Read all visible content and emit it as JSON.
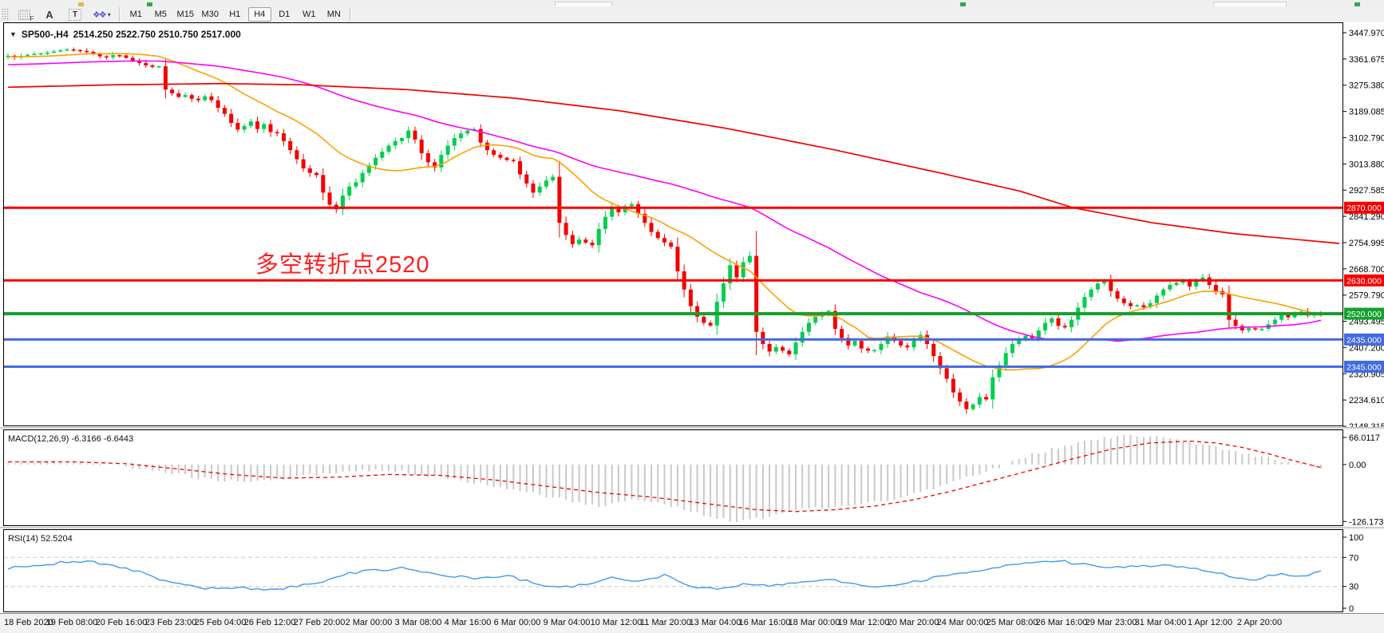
{
  "toolbar": {
    "tools": [
      {
        "name": "indicator-frame",
        "glyph": "F"
      },
      {
        "name": "label-text",
        "glyph": "A"
      },
      {
        "name": "text-box",
        "glyph": "T"
      },
      {
        "name": "shapes",
        "glyph": "❖❖",
        "caret": "▾"
      }
    ],
    "timeframes": [
      {
        "label": "M1",
        "active": false
      },
      {
        "label": "M5",
        "active": false
      },
      {
        "label": "M15",
        "active": false
      },
      {
        "label": "M30",
        "active": false
      },
      {
        "label": "H1",
        "active": false
      },
      {
        "label": "H4",
        "active": true
      },
      {
        "label": "D1",
        "active": false
      },
      {
        "label": "W1",
        "active": false
      },
      {
        "label": "MN",
        "active": false
      }
    ]
  },
  "chart": {
    "title": {
      "dropdown_glyph": "▼",
      "symbol_period": "SP500-,H4",
      "ohlc": "2514.250 2522.750 2510.750 2517.000"
    },
    "annotation": {
      "text": "多空转折点2520",
      "color": "#ff2020"
    },
    "colors": {
      "up": "#00cf4e",
      "down": "#f40000",
      "ma_fast": "#ffa000",
      "ma_mid": "#ff00ff",
      "ma_slow": "#f40000"
    },
    "y_axis_labels": [
      "3447.970",
      "3361.675",
      "3275.380",
      "3189.085",
      "3102.790",
      "3013.880",
      "2927.585",
      "2841.290",
      "2754.995",
      "2668.700",
      "2579.790",
      "2493.495",
      "2407.200",
      "2320.905",
      "2234.610",
      "2148.315"
    ],
    "price_top_label": 3447.97,
    "price_bottom_label": 2148.315,
    "levels": [
      {
        "label": "2870.000",
        "price": 2870,
        "color": "#f40000",
        "width": 3
      },
      {
        "label": "2630.000",
        "price": 2630,
        "color": "#f40000",
        "width": 3
      },
      {
        "label": "2520.000",
        "price": 2520,
        "color": "#17a02e",
        "width": 4
      },
      {
        "label": "2435.000",
        "price": 2435,
        "color": "#4169e1",
        "width": 3
      },
      {
        "label": "2345.000",
        "price": 2345,
        "color": "#4169e1",
        "width": 3
      }
    ],
    "first_open": 3368,
    "closes": [
      3372,
      3368,
      3371,
      3375,
      3378,
      3380,
      3382,
      3386,
      3390,
      3393,
      3391,
      3388,
      3385,
      3378,
      3370,
      3367,
      3374,
      3373,
      3365,
      3355,
      3348,
      3340,
      3335,
      3337,
      3260,
      3248,
      3236,
      3242,
      3230,
      3225,
      3238,
      3225,
      3200,
      3180,
      3150,
      3128,
      3140,
      3155,
      3130,
      3146,
      3120,
      3116,
      3090,
      3060,
      3030,
      3000,
      2985,
      2978,
      2920,
      2880,
      2865,
      2910,
      2940,
      2954,
      2985,
      3010,
      3035,
      3055,
      3075,
      3090,
      3100,
      3125,
      3095,
      3050,
      3020,
      3003,
      3045,
      3075,
      3100,
      3115,
      3125,
      3130,
      3085,
      3060,
      3045,
      3035,
      3028,
      3024,
      2980,
      2950,
      2920,
      2940,
      2960,
      2972,
      2820,
      2780,
      2750,
      2765,
      2755,
      2746,
      2800,
      2840,
      2870,
      2855,
      2875,
      2882,
      2850,
      2820,
      2790,
      2770,
      2755,
      2741,
      2660,
      2600,
      2545,
      2510,
      2490,
      2481,
      2560,
      2620,
      2680,
      2640,
      2690,
      2711,
      2460,
      2420,
      2395,
      2410,
      2398,
      2386,
      2425,
      2460,
      2490,
      2510,
      2520,
      2529,
      2470,
      2440,
      2415,
      2430,
      2405,
      2398,
      2400,
      2420,
      2445,
      2430,
      2415,
      2409,
      2435,
      2450,
      2420,
      2380,
      2340,
      2305,
      2260,
      2230,
      2205,
      2220,
      2245,
      2237,
      2310,
      2350,
      2390,
      2420,
      2435,
      2447,
      2440,
      2465,
      2490,
      2505,
      2480,
      2475,
      2500,
      2540,
      2575,
      2600,
      2620,
      2630,
      2595,
      2570,
      2555,
      2545,
      2548,
      2541,
      2555,
      2580,
      2600,
      2615,
      2622,
      2627,
      2610,
      2630,
      2640,
      2615,
      2595,
      2584,
      2500,
      2480,
      2465,
      2472,
      2468,
      2470,
      2485,
      2500,
      2515,
      2508,
      2520,
      2527,
      2514,
      2523,
      2517
    ],
    "sma_fast": {
      "period": 18,
      "pad": 3368
    },
    "sma_mid": {
      "period": 56,
      "pad": 3342
    },
    "ma_slow_anchors": [
      [
        0,
        3268
      ],
      [
        0.08,
        3276
      ],
      [
        0.16,
        3280
      ],
      [
        0.22,
        3276
      ],
      [
        0.3,
        3260
      ],
      [
        0.38,
        3232
      ],
      [
        0.46,
        3190
      ],
      [
        0.54,
        3132
      ],
      [
        0.62,
        3062
      ],
      [
        0.7,
        2985
      ],
      [
        0.76,
        2925
      ],
      [
        0.8,
        2870
      ],
      [
        0.86,
        2820
      ],
      [
        0.92,
        2785
      ],
      [
        1,
        2752
      ]
    ]
  },
  "macd": {
    "label": "MACD(12,26,9) -6.3166 -6.6443",
    "axis_labels": [
      {
        "text": "66.0117",
        "value": 66.0117
      },
      {
        "text": "0.00",
        "value": 0
      },
      {
        "text": "-126.173",
        "value": -126.173
      }
    ],
    "hist_color": "#c9c9c9",
    "signal_color": "#f40000",
    "hist_anchors": [
      [
        0,
        5
      ],
      [
        0.03,
        7
      ],
      [
        0.06,
        3
      ],
      [
        0.09,
        -4
      ],
      [
        0.12,
        -18
      ],
      [
        0.15,
        -32
      ],
      [
        0.18,
        -38
      ],
      [
        0.21,
        -32
      ],
      [
        0.24,
        -20
      ],
      [
        0.27,
        -12
      ],
      [
        0.3,
        -16
      ],
      [
        0.33,
        -28
      ],
      [
        0.36,
        -42
      ],
      [
        0.39,
        -58
      ],
      [
        0.42,
        -75
      ],
      [
        0.45,
        -92
      ],
      [
        0.47,
        -78
      ],
      [
        0.5,
        -88
      ],
      [
        0.53,
        -112
      ],
      [
        0.555,
        -126
      ],
      [
        0.58,
        -115
      ],
      [
        0.61,
        -98
      ],
      [
        0.64,
        -92
      ],
      [
        0.67,
        -80
      ],
      [
        0.7,
        -58
      ],
      [
        0.73,
        -28
      ],
      [
        0.755,
        -5
      ],
      [
        0.78,
        22
      ],
      [
        0.81,
        45
      ],
      [
        0.835,
        60
      ],
      [
        0.86,
        65
      ],
      [
        0.885,
        58
      ],
      [
        0.91,
        44
      ],
      [
        0.94,
        26
      ],
      [
        0.97,
        8
      ],
      [
        0.99,
        -3
      ],
      [
        1,
        -6.3
      ]
    ],
    "signal_anchors": [
      [
        0,
        6
      ],
      [
        0.05,
        6
      ],
      [
        0.09,
        2
      ],
      [
        0.13,
        -10
      ],
      [
        0.17,
        -22
      ],
      [
        0.21,
        -30
      ],
      [
        0.25,
        -28
      ],
      [
        0.29,
        -22
      ],
      [
        0.33,
        -24
      ],
      [
        0.37,
        -34
      ],
      [
        0.41,
        -48
      ],
      [
        0.45,
        -62
      ],
      [
        0.49,
        -72
      ],
      [
        0.53,
        -86
      ],
      [
        0.57,
        -100
      ],
      [
        0.6,
        -104
      ],
      [
        0.63,
        -100
      ],
      [
        0.66,
        -92
      ],
      [
        0.69,
        -78
      ],
      [
        0.72,
        -58
      ],
      [
        0.75,
        -35
      ],
      [
        0.78,
        -12
      ],
      [
        0.81,
        12
      ],
      [
        0.84,
        34
      ],
      [
        0.87,
        48
      ],
      [
        0.9,
        52
      ],
      [
        0.92,
        48
      ],
      [
        0.94,
        38
      ],
      [
        0.96,
        24
      ],
      [
        0.98,
        8
      ],
      [
        1,
        -6.6
      ]
    ]
  },
  "rsi": {
    "label": "RSI(14) 52.5204",
    "axis_labels": [
      {
        "text": "100",
        "value": 100
      },
      {
        "text": "70",
        "value": 70
      },
      {
        "text": "30",
        "value": 30
      },
      {
        "text": "0",
        "value": 0
      }
    ],
    "line_color": "#3f9bf0",
    "dashed_levels": [
      70,
      30
    ],
    "anchors": [
      [
        0,
        55
      ],
      [
        0.02,
        58
      ],
      [
        0.04,
        63
      ],
      [
        0.06,
        65
      ],
      [
        0.08,
        60
      ],
      [
        0.1,
        50
      ],
      [
        0.12,
        38
      ],
      [
        0.14,
        30
      ],
      [
        0.16,
        26
      ],
      [
        0.18,
        28
      ],
      [
        0.2,
        25
      ],
      [
        0.22,
        30
      ],
      [
        0.24,
        38
      ],
      [
        0.26,
        48
      ],
      [
        0.28,
        52
      ],
      [
        0.3,
        55
      ],
      [
        0.32,
        50
      ],
      [
        0.34,
        44
      ],
      [
        0.36,
        40
      ],
      [
        0.38,
        45
      ],
      [
        0.4,
        35
      ],
      [
        0.42,
        28
      ],
      [
        0.44,
        32
      ],
      [
        0.46,
        42
      ],
      [
        0.48,
        38
      ],
      [
        0.5,
        45
      ],
      [
        0.52,
        30
      ],
      [
        0.54,
        26
      ],
      [
        0.56,
        34
      ],
      [
        0.58,
        30
      ],
      [
        0.6,
        36
      ],
      [
        0.62,
        40
      ],
      [
        0.64,
        35
      ],
      [
        0.66,
        28
      ],
      [
        0.68,
        32
      ],
      [
        0.7,
        40
      ],
      [
        0.72,
        48
      ],
      [
        0.74,
        52
      ],
      [
        0.76,
        58
      ],
      [
        0.78,
        62
      ],
      [
        0.8,
        65
      ],
      [
        0.82,
        60
      ],
      [
        0.84,
        55
      ],
      [
        0.86,
        58
      ],
      [
        0.88,
        60
      ],
      [
        0.9,
        55
      ],
      [
        0.92,
        48
      ],
      [
        0.94,
        42
      ],
      [
        0.95,
        40
      ],
      [
        0.96,
        44
      ],
      [
        0.97,
        48
      ],
      [
        0.98,
        44
      ],
      [
        0.99,
        46
      ],
      [
        1,
        52.5
      ]
    ]
  },
  "time_axis": {
    "labels": [
      "18 Feb 2020",
      "19 Feb 08:00",
      "20 Feb 16:00",
      "23 Feb 23:00",
      "25 Feb 04:00",
      "26 Feb 12:00",
      "27 Feb 20:00",
      "2 Mar 00:00",
      "3 Mar 08:00",
      "4 Mar 16:00",
      "6 Mar 00:00",
      "9 Mar 04:00",
      "10 Mar 12:00",
      "11 Mar 20:00",
      "13 Mar 04:00",
      "16 Mar 16:00",
      "18 Mar 00:00",
      "19 Mar 12:00",
      "20 Mar 20:00",
      "24 Mar 00:00",
      "25 Mar 08:00",
      "26 Mar 16:00",
      "29 Mar 23:00",
      "31 Mar 04:00",
      "1 Apr 12:00",
      "2 Apr 20:00"
    ]
  }
}
